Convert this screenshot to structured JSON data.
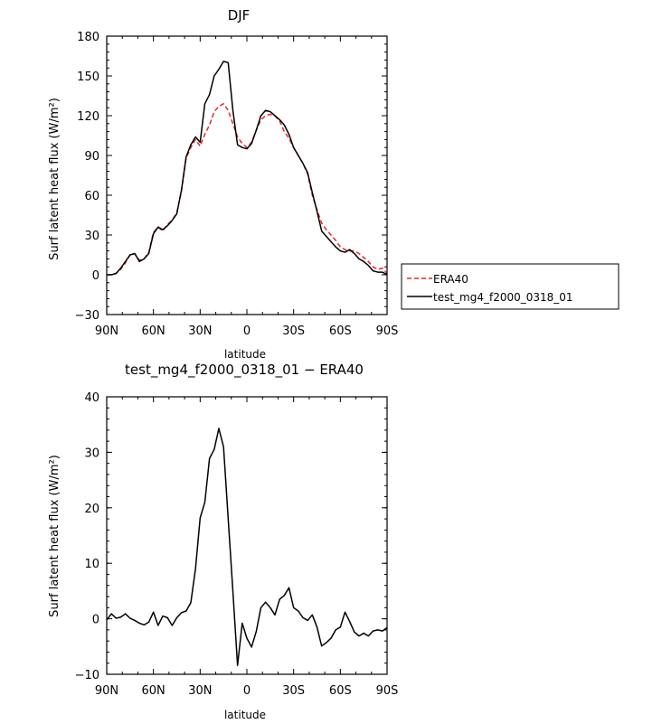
{
  "chart_data": [
    {
      "type": "line",
      "title": "DJF",
      "xlabel": "latitude",
      "ylabel": "Surf latent heat flux (W/m²)",
      "xlim": [
        -90,
        90
      ],
      "ylim": [
        -30,
        180
      ],
      "x_ticks": [
        -90,
        -60,
        -30,
        0,
        30,
        60,
        90
      ],
      "x_tick_labels": [
        "90N",
        "60N",
        "30N",
        "0",
        "30S",
        "60S",
        "90S"
      ],
      "y_ticks": [
        -30,
        0,
        30,
        60,
        90,
        120,
        150,
        180
      ],
      "y_tick_labels": [
        "−30",
        "0",
        "30",
        "60",
        "90",
        "120",
        "150",
        "180"
      ],
      "legend_position": "right",
      "series": [
        {
          "name": "ERA40",
          "color": "#e8262a",
          "dash": "dashed",
          "x": [
            -90,
            -87,
            -84,
            -81,
            -78,
            -75,
            -72,
            -69,
            -66,
            -63,
            -60,
            -57,
            -54,
            -51,
            -48,
            -45,
            -42,
            -39,
            -36,
            -33,
            -30,
            -27,
            -24,
            -21,
            -18,
            -15,
            -12,
            -9,
            -6,
            -3,
            0,
            3,
            6,
            9,
            12,
            15,
            18,
            21,
            24,
            27,
            30,
            33,
            36,
            39,
            42,
            45,
            48,
            51,
            54,
            57,
            60,
            63,
            66,
            69,
            72,
            75,
            78,
            81,
            84,
            87,
            90
          ],
          "y": [
            0,
            0,
            1,
            4,
            9,
            15,
            16,
            11,
            12,
            17,
            32,
            36,
            33,
            38,
            41,
            47,
            63,
            88,
            96,
            102,
            97,
            106,
            113,
            123,
            127,
            129,
            124,
            114,
            104,
            99,
            96,
            100,
            109,
            117,
            120,
            121,
            120,
            116,
            108,
            103,
            96,
            90,
            84,
            76,
            60,
            49,
            39,
            34,
            30,
            26,
            21,
            19,
            18,
            18,
            16,
            13,
            10,
            6,
            4,
            5,
            1
          ]
        },
        {
          "name": "test_mg4_f2000_0318_01",
          "color": "#000000",
          "dash": "solid",
          "x": [
            -90,
            -87,
            -84,
            -81,
            -78,
            -75,
            -72,
            -69,
            -66,
            -63,
            -60,
            -57,
            -54,
            -51,
            -48,
            -45,
            -42,
            -39,
            -36,
            -33,
            -30,
            -27,
            -24,
            -21,
            -18,
            -15,
            -12,
            -9,
            -6,
            -3,
            0,
            3,
            6,
            9,
            12,
            15,
            18,
            21,
            24,
            27,
            30,
            33,
            36,
            39,
            42,
            45,
            48,
            51,
            54,
            57,
            60,
            63,
            66,
            69,
            72,
            75,
            78,
            81,
            84,
            87,
            90
          ],
          "y": [
            0,
            0,
            1,
            5,
            10,
            15,
            16,
            10,
            12,
            16,
            31,
            36,
            34,
            37,
            41,
            46,
            64,
            89,
            98,
            104,
            100,
            129,
            136,
            150,
            155,
            161,
            160,
            124,
            98,
            96,
            95,
            99,
            109,
            120,
            124,
            123,
            120,
            117,
            113,
            106,
            96,
            90,
            84,
            77,
            62,
            48,
            33,
            29,
            25,
            21,
            18,
            17,
            19,
            16,
            12,
            10,
            7,
            3,
            2,
            2,
            0
          ]
        }
      ]
    },
    {
      "type": "line",
      "title": "test_mg4_f2000_0318_01 − ERA40",
      "xlabel": "latitude",
      "ylabel": "Surf latent heat flux (W/m²)",
      "xlim": [
        -90,
        90
      ],
      "ylim": [
        -10,
        40
      ],
      "x_ticks": [
        -90,
        -60,
        -30,
        0,
        30,
        60,
        90
      ],
      "x_tick_labels": [
        "90N",
        "60N",
        "30N",
        "0",
        "30S",
        "60S",
        "90S"
      ],
      "y_ticks": [
        -10,
        0,
        10,
        20,
        30,
        40
      ],
      "y_tick_labels": [
        "−10",
        "0",
        "10",
        "20",
        "30",
        "40"
      ],
      "series": [
        {
          "color": "#000000",
          "dash": "solid",
          "x": [
            -90,
            -87,
            -84,
            -81,
            -78,
            -75,
            -72,
            -69,
            -66,
            -63,
            -60,
            -57,
            -54,
            -51,
            -48,
            -45,
            -42,
            -39,
            -36,
            -33,
            -30,
            -27,
            -24,
            -21,
            -18,
            -15,
            -12,
            -9,
            -6,
            -3,
            0,
            3,
            6,
            9,
            12,
            15,
            18,
            21,
            24,
            27,
            30,
            33,
            36,
            39,
            42,
            45,
            48,
            51,
            54,
            57,
            60,
            63,
            66,
            69,
            72,
            75,
            78,
            81,
            84,
            87,
            90
          ],
          "y": [
            -0.2,
            0.9,
            0.1,
            0.3,
            0.9,
            0.1,
            -0.3,
            -0.8,
            -1.1,
            -0.6,
            1.2,
            -1.2,
            0.5,
            0.2,
            -1.2,
            0.2,
            1.1,
            1.4,
            2.9,
            9.0,
            18.2,
            21.0,
            28.9,
            30.5,
            34.3,
            31.0,
            18.0,
            5.0,
            -8.4,
            -0.8,
            -3.5,
            -5.1,
            -2.3,
            2.0,
            3.0,
            2.0,
            0.7,
            3.5,
            4.2,
            5.6,
            2.0,
            1.4,
            0.2,
            -0.3,
            0.7,
            -1.5,
            -4.9,
            -4.3,
            -3.5,
            -2.0,
            -1.5,
            1.2,
            -0.5,
            -2.4,
            -3.1,
            -2.6,
            -3.1,
            -2.2,
            -2.0,
            -2.2,
            -1.6
          ]
        }
      ]
    }
  ]
}
